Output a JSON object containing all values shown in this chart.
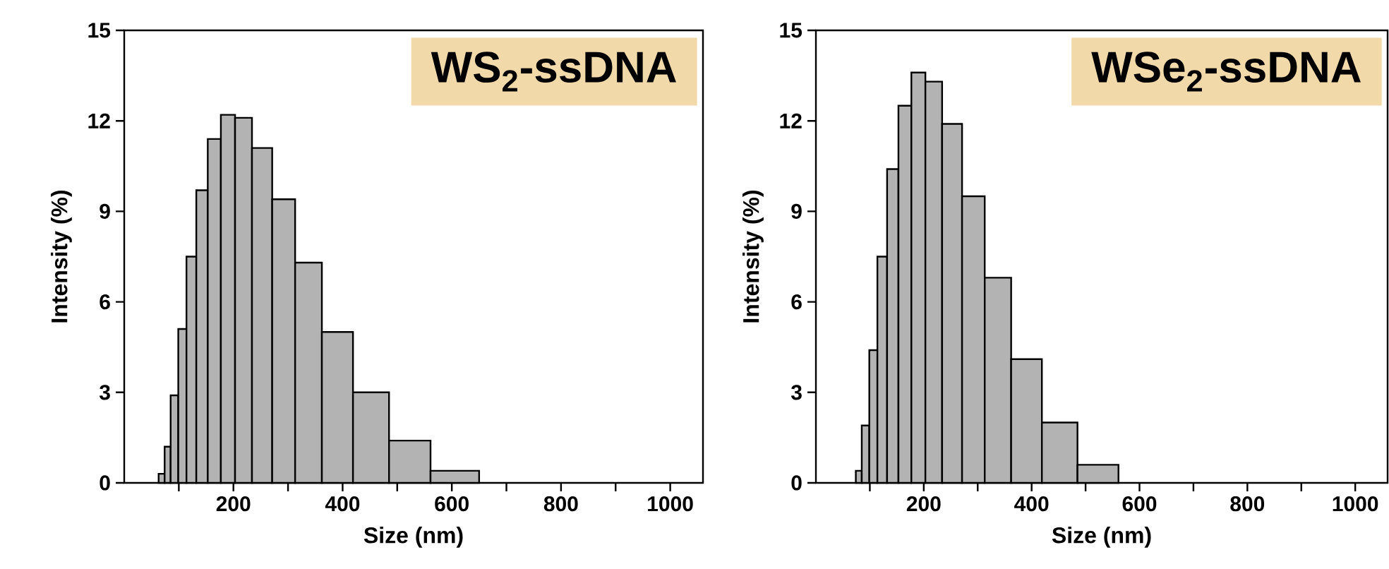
{
  "chart_data": [
    {
      "type": "histogram",
      "bins": [
        63,
        74,
        85,
        99,
        114,
        132,
        153,
        177,
        203,
        234,
        271,
        313,
        362,
        419,
        485,
        561,
        650
      ],
      "values": [
        0.3,
        1.2,
        2.9,
        5.1,
        7.5,
        9.7,
        11.4,
        12.2,
        12.1,
        11.1,
        9.4,
        7.3,
        5.0,
        3.0,
        1.4,
        0.4
      ],
      "color": "#b3b3b3",
      "xlabel": "Size (nm)",
      "ylabel": "Intensity (%)",
      "xlim": [
        0,
        1060
      ],
      "ylim": [
        0,
        15
      ],
      "xticks": [
        {
          "value": 100,
          "label": null
        },
        200,
        {
          "value": 300,
          "label": null
        },
        400,
        {
          "value": 500,
          "label": null
        },
        600,
        {
          "value": 700,
          "label": null
        },
        800,
        {
          "value": 900,
          "label": null
        },
        1000
      ],
      "yticks": [
        0,
        3,
        6,
        9,
        12,
        15
      ],
      "annotations": [
        "WS$_{2}$-ssDNA"
      ]
    },
    {
      "type": "histogram",
      "bins": [
        74,
        85,
        99,
        114,
        132,
        153,
        177,
        203,
        234,
        271,
        313,
        362,
        419,
        485,
        561
      ],
      "values": [
        0.4,
        1.9,
        4.4,
        7.5,
        10.4,
        12.5,
        13.6,
        13.3,
        11.9,
        9.5,
        6.8,
        4.1,
        2.0,
        0.6
      ],
      "color": "#b3b3b3",
      "xlabel": "Size (nm)",
      "ylabel": "Intensity (%)",
      "xlim": [
        0,
        1060
      ],
      "ylim": [
        0,
        15
      ],
      "xticks": [
        {
          "value": 100,
          "label": null
        },
        200,
        {
          "value": 300,
          "label": null
        },
        400,
        {
          "value": 500,
          "label": null
        },
        600,
        {
          "value": 700,
          "label": null
        },
        800,
        {
          "value": 900,
          "label": null
        },
        1000
      ],
      "yticks": [
        0,
        3,
        6,
        9,
        12,
        15
      ],
      "annotations": [
        "WSe$_{2}$-ssDNA"
      ]
    }
  ]
}
